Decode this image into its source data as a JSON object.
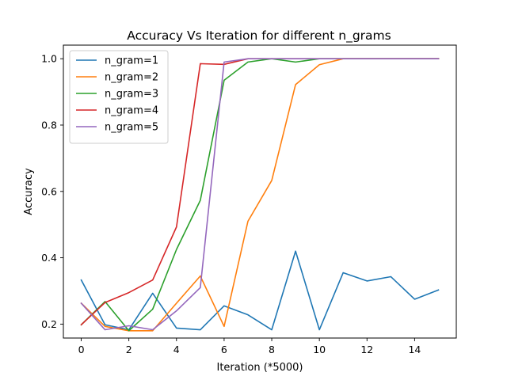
{
  "chart_data": {
    "type": "line",
    "title": "Accuracy Vs Iteration for different n_grams",
    "xlabel": "Iteration (*5000)",
    "ylabel": "Accuracy",
    "xlim": [
      -0.75,
      15.75
    ],
    "ylim": [
      0.158,
      1.041
    ],
    "xticks": [
      0,
      2,
      4,
      6,
      8,
      10,
      12,
      14
    ],
    "yticks": [
      0.2,
      0.4,
      0.6,
      0.8,
      1.0
    ],
    "ytick_labels": [
      "0.2",
      "0.4",
      "0.6",
      "0.8",
      "1.0"
    ],
    "grid": false,
    "legend_position": "upper-left",
    "x": [
      0,
      1,
      2,
      3,
      4,
      5,
      6,
      7,
      8,
      9,
      10,
      11,
      12,
      13,
      14,
      15
    ],
    "series": [
      {
        "name": "n_gram=1",
        "color": "#1f77b4",
        "values": [
          0.333,
          0.198,
          0.183,
          0.293,
          0.188,
          0.183,
          0.255,
          0.228,
          0.183,
          0.42,
          0.183,
          0.355,
          0.33,
          0.343,
          0.275,
          0.303
        ]
      },
      {
        "name": "n_gram=2",
        "color": "#ff7f0e",
        "values": [
          0.263,
          0.193,
          0.18,
          0.18,
          0.263,
          0.345,
          0.193,
          0.51,
          0.633,
          0.922,
          0.982,
          1.0,
          1.0,
          1.0,
          1.0,
          1.0
        ]
      },
      {
        "name": "n_gram=3",
        "color": "#2ca02c",
        "values": [
          0.198,
          0.268,
          0.18,
          0.245,
          0.425,
          0.573,
          0.935,
          0.99,
          1.0,
          0.99,
          1.0,
          1.0,
          1.0,
          1.0,
          1.0,
          1.0
        ]
      },
      {
        "name": "n_gram=4",
        "color": "#d62728",
        "values": [
          0.198,
          0.265,
          0.295,
          0.333,
          0.493,
          0.985,
          0.983,
          1.0,
          1.0,
          1.0,
          1.0,
          1.0,
          1.0,
          1.0,
          1.0,
          1.0
        ]
      },
      {
        "name": "n_gram=5",
        "color": "#9467bd",
        "values": [
          0.263,
          0.183,
          0.195,
          0.183,
          0.24,
          0.31,
          0.99,
          1.0,
          1.0,
          1.0,
          1.0,
          1.0,
          1.0,
          1.0,
          1.0,
          1.0
        ]
      }
    ]
  }
}
